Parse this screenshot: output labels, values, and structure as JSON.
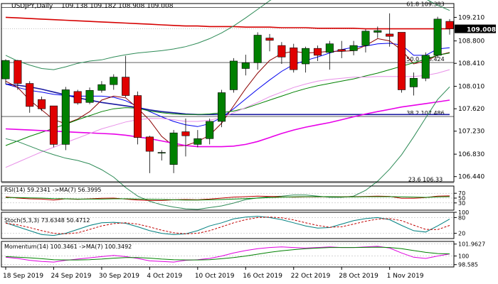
{
  "chart_data": {
    "type": "candlestick",
    "symbol_label": "USDJPY,Daily",
    "ohlc_header": "109.138 109.182 108.908 109.008",
    "current_price_label": "109.008",
    "price_axis": {
      "range": [
        106.35,
        109.45
      ],
      "tick_labels": [
        "109.210",
        "108.800",
        "108.410",
        "108.010",
        "107.620",
        "107.230",
        "106.830",
        "106.440"
      ],
      "tick_values": [
        109.21,
        108.8,
        108.41,
        108.01,
        107.62,
        107.23,
        106.83,
        106.44
      ]
    },
    "x_labels": [
      {
        "text": "18 Sep 2019",
        "index": 0
      },
      {
        "text": "24 Sep 2019",
        "index": 4
      },
      {
        "text": "30 Sep 2019",
        "index": 8
      },
      {
        "text": "4 Oct 2019",
        "index": 12
      },
      {
        "text": "10 Oct 2019",
        "index": 16
      },
      {
        "text": "16 Oct 2019",
        "index": 20
      },
      {
        "text": "22 Oct 2019",
        "index": 24
      },
      {
        "text": "28 Oct 2019",
        "index": 28
      },
      {
        "text": "1 Nov 2019",
        "index": 32
      }
    ],
    "candles": [
      {
        "o": 108.14,
        "h": 108.48,
        "c": 108.46,
        "l": 108.05
      },
      {
        "o": 108.46,
        "h": 108.47,
        "c": 108.06,
        "l": 107.95
      },
      {
        "o": 108.06,
        "h": 108.1,
        "c": 107.66,
        "l": 107.55
      },
      {
        "o": 107.78,
        "h": 107.83,
        "c": 107.62,
        "l": 107.58
      },
      {
        "o": 107.67,
        "h": 107.67,
        "c": 107.0,
        "l": 106.95
      },
      {
        "o": 107.0,
        "h": 108.0,
        "c": 107.95,
        "l": 106.9
      },
      {
        "o": 107.92,
        "h": 107.95,
        "c": 107.72,
        "l": 107.69
      },
      {
        "o": 107.73,
        "h": 107.99,
        "c": 107.94,
        "l": 107.7
      },
      {
        "o": 107.94,
        "h": 108.1,
        "c": 108.04,
        "l": 107.9
      },
      {
        "o": 108.04,
        "h": 108.22,
        "c": 108.17,
        "l": 107.95
      },
      {
        "o": 108.17,
        "h": 108.54,
        "c": 107.85,
        "l": 107.82
      },
      {
        "o": 107.85,
        "h": 107.92,
        "c": 107.12,
        "l": 107.0
      },
      {
        "o": 107.13,
        "h": 107.15,
        "c": 106.88,
        "l": 106.5
      },
      {
        "o": 106.86,
        "h": 106.9,
        "c": 106.86,
        "l": 106.72
      },
      {
        "o": 106.65,
        "h": 107.25,
        "c": 107.2,
        "l": 106.5
      },
      {
        "o": 107.22,
        "h": 107.45,
        "c": 107.15,
        "l": 106.79
      },
      {
        "o": 107.0,
        "h": 107.25,
        "c": 107.1,
        "l": 106.95
      },
      {
        "o": 107.1,
        "h": 107.45,
        "c": 107.4,
        "l": 107.0
      },
      {
        "o": 107.4,
        "h": 107.95,
        "c": 107.9,
        "l": 107.3
      },
      {
        "o": 107.95,
        "h": 108.5,
        "c": 108.45,
        "l": 107.9
      },
      {
        "o": 108.32,
        "h": 108.56,
        "c": 108.42,
        "l": 108.2
      },
      {
        "o": 108.42,
        "h": 108.95,
        "c": 108.9,
        "l": 108.3
      },
      {
        "o": 108.85,
        "h": 108.92,
        "c": 108.81,
        "l": 108.62
      },
      {
        "o": 108.72,
        "h": 108.78,
        "c": 108.52,
        "l": 108.4
      },
      {
        "o": 108.68,
        "h": 108.75,
        "c": 108.3,
        "l": 108.25
      },
      {
        "o": 108.4,
        "h": 108.7,
        "c": 108.67,
        "l": 108.25
      },
      {
        "o": 108.67,
        "h": 108.72,
        "c": 108.55,
        "l": 108.45
      },
      {
        "o": 108.6,
        "h": 108.8,
        "c": 108.75,
        "l": 108.3
      },
      {
        "o": 108.65,
        "h": 108.8,
        "c": 108.62,
        "l": 108.5
      },
      {
        "o": 108.63,
        "h": 108.8,
        "c": 108.72,
        "l": 108.55
      },
      {
        "o": 108.72,
        "h": 109.0,
        "c": 108.97,
        "l": 108.6
      },
      {
        "o": 108.95,
        "h": 109.05,
        "c": 108.98,
        "l": 108.85
      },
      {
        "o": 108.92,
        "h": 109.28,
        "c": 108.88,
        "l": 108.7
      },
      {
        "o": 108.95,
        "h": 108.95,
        "c": 107.95,
        "l": 107.9
      },
      {
        "o": 108.0,
        "h": 108.25,
        "c": 108.15,
        "l": 107.85
      },
      {
        "o": 108.15,
        "h": 108.6,
        "c": 108.55,
        "l": 108.1
      },
      {
        "o": 108.55,
        "h": 109.22,
        "c": 109.18,
        "l": 108.5
      },
      {
        "o": 109.14,
        "h": 109.18,
        "c": 109.01,
        "l": 108.91
      }
    ],
    "overlays": [
      {
        "color": "#d60000",
        "values": [
          109.21,
          109.2,
          109.19,
          109.18,
          109.17,
          109.16,
          109.15,
          109.14,
          109.13,
          109.12,
          109.11,
          109.1,
          109.09,
          109.08,
          109.07,
          109.06,
          109.06,
          109.05,
          109.05,
          109.05,
          109.04,
          109.04,
          109.04,
          109.03,
          109.03,
          109.03,
          109.02,
          109.02,
          109.02,
          109.02,
          109.01,
          109.01,
          109.01,
          109.01,
          109.01,
          109.01,
          109.01,
          109.01
        ]
      },
      {
        "color": "#1a1aa0",
        "values": [
          108.05,
          108.03,
          108.0,
          107.96,
          107.91,
          107.86,
          107.81,
          107.77,
          107.73,
          107.7,
          107.67,
          107.64,
          107.6,
          107.57,
          107.55,
          107.53,
          107.52,
          107.52,
          107.52,
          107.52,
          107.52,
          107.52,
          107.52,
          107.52,
          107.52,
          107.52,
          107.52,
          107.52,
          107.52,
          107.52,
          107.52,
          107.52,
          107.52,
          107.52,
          107.52,
          107.52,
          107.52,
          107.52
        ]
      },
      {
        "color": "#0000ee",
        "values": [
          108.05,
          107.99,
          107.94,
          107.91,
          107.87,
          107.85,
          107.84,
          107.84,
          107.84,
          107.82,
          107.76,
          107.66,
          107.57,
          107.48,
          107.4,
          107.34,
          107.31,
          107.36,
          107.47,
          107.62,
          107.79,
          107.96,
          108.12,
          108.27,
          108.39,
          108.46,
          108.52,
          108.59,
          108.65,
          108.69,
          108.71,
          108.75,
          108.76,
          108.73,
          108.55,
          108.55,
          108.66,
          108.68
        ]
      },
      {
        "color": "#8b0000",
        "values": [
          108.1,
          107.99,
          107.77,
          107.6,
          107.43,
          107.36,
          107.44,
          107.57,
          107.77,
          107.84,
          107.81,
          107.63,
          107.42,
          107.14,
          106.97,
          106.98,
          107.05,
          107.16,
          107.37,
          107.67,
          107.97,
          108.24,
          108.46,
          108.58,
          108.62,
          108.59,
          108.6,
          108.62,
          108.62,
          108.63,
          108.72,
          108.84,
          108.8,
          108.64,
          108.4,
          108.45,
          108.55,
          108.6
        ]
      },
      {
        "color": "#008000",
        "values": [
          106.98,
          107.06,
          107.14,
          107.21,
          107.28,
          107.35,
          107.43,
          107.5,
          107.57,
          107.62,
          107.64,
          107.63,
          107.58,
          107.55,
          107.53,
          107.52,
          107.52,
          107.53,
          107.55,
          107.58,
          107.63,
          107.7,
          107.77,
          107.84,
          107.91,
          107.97,
          108.02,
          108.06,
          108.1,
          108.14,
          108.19,
          108.24,
          108.3,
          108.36,
          108.42,
          108.48,
          108.55,
          108.59
        ]
      },
      {
        "color": "#e800e8",
        "values": [
          107.27,
          107.26,
          107.25,
          107.24,
          107.23,
          107.22,
          107.21,
          107.2,
          107.19,
          107.18,
          107.16,
          107.13,
          107.1,
          107.06,
          107.02,
          106.98,
          106.96,
          106.96,
          106.96,
          106.97,
          107.0,
          107.05,
          107.12,
          107.19,
          107.25,
          107.3,
          107.34,
          107.38,
          107.43,
          107.48,
          107.53,
          107.57,
          107.61,
          107.65,
          107.68,
          107.71,
          107.74,
          107.77
        ]
      },
      {
        "color": "#e890e8",
        "values": [
          106.6,
          106.69,
          106.78,
          106.87,
          106.95,
          107.03,
          107.11,
          107.19,
          107.27,
          107.33,
          107.39,
          107.43,
          107.45,
          107.45,
          107.43,
          107.4,
          107.4,
          107.42,
          107.47,
          107.55,
          107.64,
          107.73,
          107.83,
          107.91,
          107.99,
          108.05,
          108.1,
          108.13,
          108.15,
          108.17,
          108.17,
          108.18,
          108.18,
          108.18,
          108.18,
          108.2,
          108.24,
          108.3
        ]
      },
      {
        "color": "#2e8b57",
        "values": [
          108.55,
          108.45,
          108.38,
          108.32,
          108.3,
          108.35,
          108.41,
          108.45,
          108.47,
          108.52,
          108.56,
          108.59,
          108.61,
          108.63,
          108.66,
          108.7,
          108.76,
          108.84,
          108.94,
          109.06,
          109.2,
          109.35,
          109.5,
          109.63,
          109.73,
          109.8,
          109.85,
          109.9,
          109.93,
          109.95,
          109.93,
          109.89,
          109.84,
          109.76,
          109.66,
          109.53,
          109.42,
          109.33
        ]
      },
      {
        "color": "#2e8b57",
        "values": [
          107.1,
          107.05,
          106.97,
          106.89,
          106.82,
          106.76,
          106.72,
          106.66,
          106.56,
          106.43,
          106.25,
          106.1,
          106.01,
          105.95,
          105.91,
          105.88,
          105.87,
          105.9,
          105.93,
          105.98,
          106.04,
          106.07,
          106.09,
          106.1,
          106.12,
          106.12,
          106.1,
          106.08,
          106.08,
          106.1,
          106.2,
          106.36,
          106.57,
          106.82,
          107.13,
          107.46,
          107.78,
          108.0
        ]
      }
    ],
    "levels": [
      {
        "value": 109.383,
        "label": "61.8 109.383"
      },
      {
        "value": 108.424,
        "label": "50.0 108.424"
      },
      {
        "value": 107.486,
        "label": "38.2 107.486"
      },
      {
        "value": 106.33,
        "label": "23.6 106.33"
      }
    ],
    "panels": [
      {
        "label": "RSI(14) 59.2341 ->MA(7) 56.3995",
        "range": [
          0,
          100
        ],
        "tick_labels": [
          "70",
          "50",
          "30"
        ],
        "tick_values": [
          70,
          50,
          30
        ],
        "series": [
          {
            "color": "#c00000",
            "values": [
              55,
              50,
              47,
              46,
              42,
              47,
              45,
              47,
              49,
              50,
              46,
              42,
              40,
              40,
              43,
              44,
              43,
              46,
              50,
              54,
              56,
              58,
              57,
              55,
              54,
              55,
              55,
              56,
              55,
              56,
              57,
              58,
              57,
              49,
              49,
              52,
              58,
              59
            ]
          },
          {
            "color": "#008000",
            "values": [
              52,
              52,
              51,
              50,
              48,
              47,
              46,
              46,
              46,
              47,
              47,
              46,
              45,
              44,
              43,
              42,
              42,
              43,
              44,
              46,
              48,
              50,
              52,
              54,
              55,
              56,
              56,
              56,
              55,
              55,
              56,
              56,
              56,
              55,
              54,
              53,
              55,
              56
            ]
          }
        ]
      },
      {
        "label": "Stoch(5,3,3) 73.6348 50.4712",
        "range": [
          0,
          100
        ],
        "tick_labels": [
          "100",
          "80",
          "20"
        ],
        "tick_values": [
          100,
          80,
          20
        ],
        "series": [
          {
            "color": "#008080",
            "values": [
              60,
              45,
              30,
              15,
              12,
              20,
              35,
              50,
              60,
              62,
              58,
              45,
              30,
              20,
              15,
              18,
              30,
              48,
              60,
              75,
              82,
              85,
              80,
              72,
              60,
              48,
              40,
              42,
              55,
              68,
              76,
              80,
              72,
              50,
              30,
              25,
              48,
              74
            ]
          },
          {
            "color": "#c00000",
            "values": [
              58,
              52,
              42,
              30,
              20,
              18,
              22,
              35,
              48,
              57,
              60,
              55,
              44,
              32,
              22,
              18,
              20,
              30,
              45,
              60,
              72,
              80,
              82,
              79,
              71,
              60,
              50,
              43,
              45,
              55,
              66,
              74,
              76,
              68,
              51,
              35,
              34,
              50
            ]
          }
        ]
      },
      {
        "label": "Momentum(14) 100.3461 ->MA(7) 100.3492",
        "range": [
          98.2,
          102.4
        ],
        "tick_labels": [
          "101.9627",
          "100",
          "98.585"
        ],
        "tick_values": [
          101.9627,
          100,
          98.585
        ],
        "series": [
          {
            "color": "#e000e0",
            "values": [
              99.8,
              99.6,
              99.3,
              99.1,
              99.0,
              99.3,
              99.5,
              99.7,
              99.9,
              100.1,
              99.9,
              99.6,
              99.2,
              99.1,
              99.0,
              99.3,
              99.4,
              99.6,
              100.0,
              100.5,
              100.9,
              101.2,
              101.4,
              101.5,
              101.4,
              101.3,
              101.4,
              101.5,
              101.4,
              101.4,
              101.5,
              101.6,
              101.3,
              100.5,
              99.8,
              99.6,
              100.0,
              100.35
            ]
          },
          {
            "color": "#008000",
            "values": [
              99.9,
              99.8,
              99.7,
              99.55,
              99.4,
              99.35,
              99.35,
              99.4,
              99.5,
              99.65,
              99.75,
              99.75,
              99.65,
              99.5,
              99.4,
              99.35,
              99.35,
              99.4,
              99.55,
              99.75,
              100.0,
              100.3,
              100.6,
              100.85,
              101.05,
              101.2,
              101.3,
              101.4,
              101.4,
              101.4,
              101.42,
              101.45,
              101.4,
              101.2,
              100.9,
              100.6,
              100.4,
              100.35
            ]
          }
        ]
      }
    ]
  },
  "colors": {
    "bull_candle": "#008000",
    "bear_candle": "#e00000",
    "current_price_box": "#000000",
    "level_line": "#000000"
  }
}
